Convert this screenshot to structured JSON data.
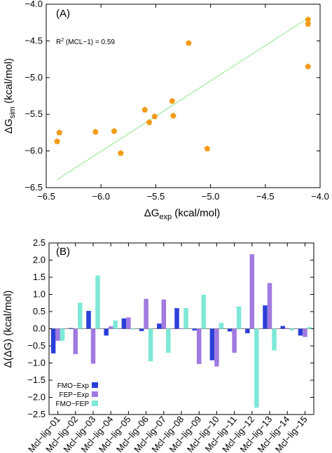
{
  "chart_data": [
    {
      "type": "scatter",
      "panel_label": "(A)",
      "annotation": {
        "r2_prefix": "R",
        "r2_sup": "2",
        "r2_text": " (MCL−1) = 0.59"
      },
      "xlabel": {
        "main": "ΔG",
        "sub": "exp",
        "unit": " (kcal/mol)"
      },
      "ylabel": {
        "main": "ΔG",
        "sub": "sim",
        "unit": " (kcal/mol)"
      },
      "xlim": [
        -6.5,
        -4.0
      ],
      "ylim": [
        -6.5,
        -4.0
      ],
      "xticks": [
        "−6.5",
        "−6.0",
        "−5.5",
        "−5.0",
        "−4.5",
        "−4.0"
      ],
      "yticks": [
        "−4.0",
        "−4.5",
        "−5.0",
        "−5.5",
        "−6.0",
        "−6.5"
      ],
      "xtick_values": [
        -6.5,
        -6.0,
        -5.5,
        -5.0,
        -4.5,
        -4.0
      ],
      "ytick_values": [
        -4.0,
        -4.5,
        -5.0,
        -5.5,
        -6.0,
        -6.5
      ],
      "points": [
        {
          "x": -6.4,
          "y": -5.87
        },
        {
          "x": -6.38,
          "y": -5.75
        },
        {
          "x": -6.05,
          "y": -5.74
        },
        {
          "x": -5.88,
          "y": -5.73
        },
        {
          "x": -5.82,
          "y": -6.03
        },
        {
          "x": -5.6,
          "y": -5.44
        },
        {
          "x": -5.56,
          "y": -5.61
        },
        {
          "x": -5.51,
          "y": -5.53
        },
        {
          "x": -5.35,
          "y": -5.32
        },
        {
          "x": -5.34,
          "y": -5.52
        },
        {
          "x": -5.2,
          "y": -4.53
        },
        {
          "x": -5.03,
          "y": -5.97
        },
        {
          "x": -4.11,
          "y": -4.21
        },
        {
          "x": -4.11,
          "y": -4.27
        },
        {
          "x": -4.11,
          "y": -4.85
        }
      ],
      "fit_line": {
        "x": [
          -6.4,
          -4.1
        ],
        "y": [
          -6.39,
          -4.18
        ]
      },
      "colors": {
        "points": "#f39c1a",
        "fit": "#90e890"
      }
    },
    {
      "type": "bar",
      "panel_label": "(B)",
      "ylabel": "Δ(ΔG) (kcal/mol)",
      "ylim": [
        -2.5,
        2.5
      ],
      "yticks": [
        "2.5",
        "2.0",
        "1.5",
        "1.0",
        "0.5",
        "0.0",
        "−0.5",
        "−1.0",
        "−1.5",
        "−2.0",
        "−2.5"
      ],
      "ytick_values": [
        2.5,
        2.0,
        1.5,
        1.0,
        0.5,
        0.0,
        -0.5,
        -1.0,
        -1.5,
        -2.0,
        -2.5
      ],
      "categories": [
        "Mcl−lig−01",
        "Mcl−lig−02",
        "Mcl−lig−03",
        "Mcl−lig−04",
        "Mcl−lig−05",
        "Mcl−lig−06",
        "Mcl−lig−07",
        "Mcl−lig−08",
        "Mcl−lig−09",
        "Mcl−lig−10",
        "Mcl−lig−11",
        "Mcl−lig−12",
        "Mcl−lig−13",
        "Mcl−lig−14",
        "Mcl−lig−15"
      ],
      "series": [
        {
          "name": "FMO−Exp",
          "color": "#2b3fd8",
          "values": [
            -0.72,
            0.02,
            0.52,
            -0.2,
            0.3,
            -0.07,
            0.15,
            0.6,
            -0.05,
            -0.92,
            -0.08,
            -0.13,
            0.68,
            0.08,
            -0.2
          ]
        },
        {
          "name": "FEP−Exp",
          "color": "#a07ae0",
          "values": [
            -0.35,
            -0.74,
            -1.02,
            0.07,
            0.33,
            0.87,
            0.85,
            0.0,
            -1.03,
            -1.1,
            -0.7,
            2.17,
            1.33,
            0.02,
            -0.24
          ]
        },
        {
          "name": "FMO−FEP",
          "color": "#7ee8d8",
          "values": [
            -0.35,
            0.76,
            1.55,
            0.24,
            -0.02,
            -0.95,
            -0.7,
            0.6,
            0.99,
            0.17,
            0.65,
            -2.3,
            -0.63,
            -0.05,
            0.05
          ]
        }
      ],
      "legend_position": "bottom-left"
    }
  ]
}
